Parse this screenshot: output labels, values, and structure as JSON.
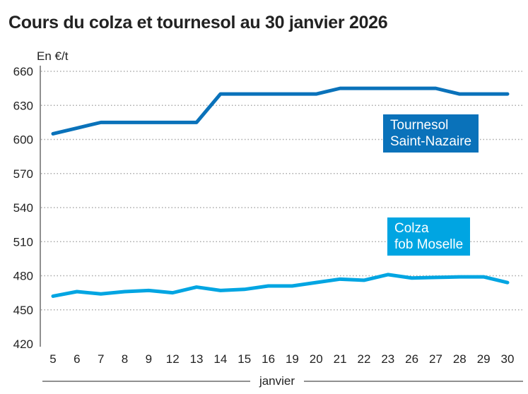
{
  "chart_data": {
    "type": "line",
    "title": "Cours du colza et tournesol au 30 janvier 2026",
    "ylabel": "En €/t",
    "xlabel": "janvier",
    "ylim": [
      420,
      660
    ],
    "yticks": [
      660,
      630,
      600,
      570,
      540,
      510,
      480,
      450,
      420
    ],
    "grid": true,
    "categories": [
      "5",
      "6",
      "7",
      "8",
      "9",
      "12",
      "13",
      "14",
      "15",
      "16",
      "19",
      "20",
      "21",
      "22",
      "23",
      "26",
      "27",
      "28",
      "29",
      "30"
    ],
    "series": [
      {
        "name": "Tournesol Saint-Nazaire",
        "label_lines": [
          "Tournesol",
          "Saint-Nazaire"
        ],
        "color": "#0a72ba",
        "values": [
          605,
          610,
          615,
          615,
          615,
          615,
          615,
          640,
          640,
          640,
          640,
          640,
          645,
          645,
          645,
          645,
          645,
          640,
          640,
          640
        ]
      },
      {
        "name": "Colza fob Moselle",
        "label_lines": [
          "Colza",
          "fob Moselle"
        ],
        "color": "#00a5e2",
        "values": [
          462,
          466,
          464,
          466,
          467,
          465,
          470,
          467,
          468,
          471,
          471,
          474,
          477,
          476,
          481,
          478,
          478.5,
          479,
          479,
          474
        ]
      }
    ]
  }
}
